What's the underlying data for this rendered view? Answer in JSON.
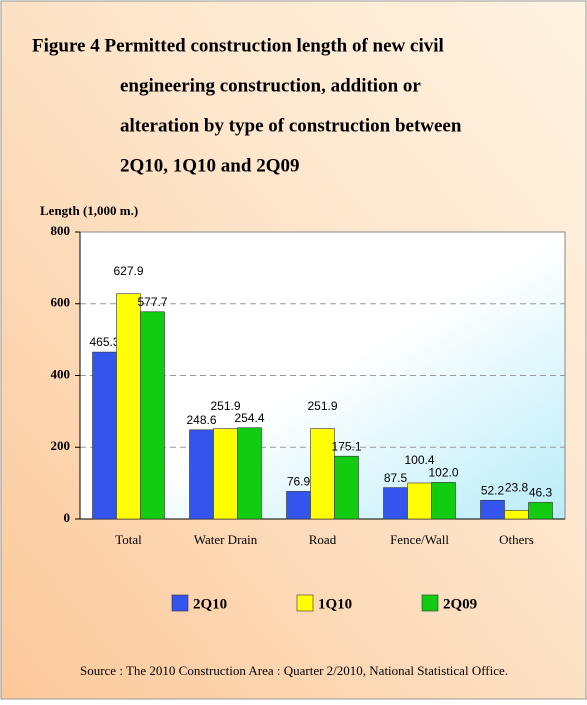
{
  "chart_data": {
    "type": "bar",
    "title": [
      "Figure 4  Permitted construction length  of new civil",
      "engineering construction, addition or",
      "alteration by type of construction between",
      "2Q10, 1Q10 and 2Q09"
    ],
    "y_label": "Length (1,000 m.)",
    "categories": [
      "Total",
      "Water Drain",
      "Road",
      "Fence/Wall",
      "Others"
    ],
    "series": [
      {
        "name": "2Q10",
        "color": "#3355ee",
        "values": [
          465.3,
          248.6,
          76.9,
          87.5,
          52.2
        ],
        "value_labels": [
          "465.3",
          "248.6",
          "76.9",
          "87.5",
          "52.2"
        ]
      },
      {
        "name": "1Q10",
        "color": "#ffff00",
        "values": [
          627.9,
          251.9,
          251.9,
          100.4,
          23.8
        ],
        "value_labels": [
          "627.9",
          "251.9",
          "251.9",
          "100.4",
          "23.8"
        ]
      },
      {
        "name": "2Q09",
        "color": "#11cc11",
        "values": [
          577.7,
          254.4,
          175.1,
          102.0,
          46.3
        ],
        "value_labels": [
          "577.7",
          "254.4",
          "175.1",
          "102.0",
          "46.3"
        ]
      }
    ],
    "ylim": [
      0,
      800
    ],
    "yticks": [
      0,
      200,
      400,
      600,
      800
    ],
    "grid": true,
    "source": "Source : The 2010 Construction Area : Quarter 2/2010, National Statistical Office."
  }
}
